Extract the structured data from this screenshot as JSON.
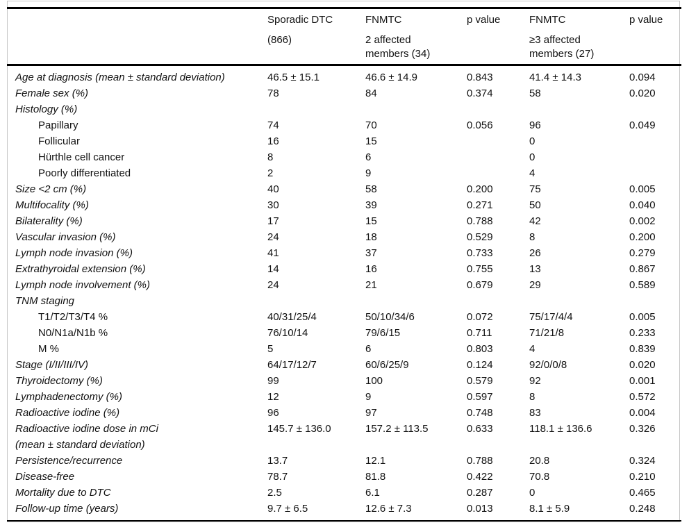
{
  "table": {
    "header": [
      {
        "line1": "",
        "line2": ""
      },
      {
        "line1": "Sporadic DTC",
        "line2": "(866)"
      },
      {
        "line1": "FNMTC",
        "line2": "2 affected members (34)"
      },
      {
        "line1": "p value",
        "line2": ""
      },
      {
        "line1": "FNMTC",
        "line2": "≥3 affected members (27)"
      },
      {
        "line1": "p value",
        "line2": ""
      }
    ],
    "rows": [
      {
        "label": "Age at diagnosis (mean ± standard deviation)",
        "italic": true,
        "sub": false,
        "cells": [
          "46.5 ± 15.1",
          "46.6 ± 14.9",
          "0.843",
          "41.4 ± 14.3",
          "0.094"
        ]
      },
      {
        "label": "Female sex (%)",
        "italic": true,
        "sub": false,
        "cells": [
          "78",
          "84",
          "0.374",
          "58",
          "0.020"
        ]
      },
      {
        "label": "Histology (%)",
        "italic": true,
        "sub": false,
        "cells": [
          "",
          "",
          "",
          "",
          ""
        ]
      },
      {
        "label": "Papillary",
        "italic": false,
        "sub": true,
        "cells": [
          "74",
          "70",
          "0.056",
          "96",
          "0.049"
        ]
      },
      {
        "label": "Follicular",
        "italic": false,
        "sub": true,
        "cells": [
          "16",
          "15",
          "",
          "0",
          ""
        ]
      },
      {
        "label": "Hürthle cell cancer",
        "italic": false,
        "sub": true,
        "cells": [
          "8",
          "6",
          "",
          "0",
          ""
        ]
      },
      {
        "label": "Poorly differentiated",
        "italic": false,
        "sub": true,
        "cells": [
          "2",
          "9",
          "",
          "4",
          ""
        ]
      },
      {
        "label": "Size <2 cm (%)",
        "italic": true,
        "sub": false,
        "cells": [
          "40",
          "58",
          "0.200",
          "75",
          "0.005"
        ]
      },
      {
        "label": "Multifocality (%)",
        "italic": true,
        "sub": false,
        "cells": [
          "30",
          "39",
          "0.271",
          "50",
          "0.040"
        ]
      },
      {
        "label": "Bilaterality (%)",
        "italic": true,
        "sub": false,
        "cells": [
          "17",
          "15",
          "0.788",
          "42",
          "0.002"
        ]
      },
      {
        "label": "Vascular invasion (%)",
        "italic": true,
        "sub": false,
        "cells": [
          "24",
          "18",
          "0.529",
          "8",
          "0.200"
        ]
      },
      {
        "label": "Lymph node invasion (%)",
        "italic": true,
        "sub": false,
        "cells": [
          "41",
          "37",
          "0.733",
          "26",
          "0.279"
        ]
      },
      {
        "label": "Extrathyroidal extension (%)",
        "italic": true,
        "sub": false,
        "cells": [
          "14",
          "16",
          "0.755",
          "13",
          "0.867"
        ]
      },
      {
        "label": "Lymph node involvement (%)",
        "italic": true,
        "sub": false,
        "cells": [
          "24",
          "21",
          "0.679",
          "29",
          "0.589"
        ]
      },
      {
        "label": "TNM staging",
        "italic": true,
        "sub": false,
        "cells": [
          "",
          "",
          "",
          "",
          ""
        ]
      },
      {
        "label": "T1/T2/T3/T4 %",
        "italic": false,
        "sub": true,
        "cells": [
          "40/31/25/4",
          "50/10/34/6",
          "0.072",
          "75/17/4/4",
          "0.005"
        ]
      },
      {
        "label": "N0/N1a/N1b %",
        "italic": false,
        "sub": true,
        "cells": [
          "76/10/14",
          "79/6/15",
          "0.711",
          "71/21/8",
          "0.233"
        ]
      },
      {
        "label": "M %",
        "italic": false,
        "sub": true,
        "cells": [
          "5",
          "6",
          "0.803",
          "4",
          "0.839"
        ]
      },
      {
        "label": "Stage (I/II/III/IV)",
        "italic": true,
        "sub": false,
        "cells": [
          "64/17/12/7",
          "60/6/25/9",
          "0.124",
          "92/0/0/8",
          "0.020"
        ]
      },
      {
        "label": "Thyroidectomy (%)",
        "italic": true,
        "sub": false,
        "cells": [
          "99",
          "100",
          "0.579",
          "92",
          "0.001"
        ]
      },
      {
        "label": "Lymphadenectomy (%)",
        "italic": true,
        "sub": false,
        "cells": [
          "12",
          "9",
          "0.597",
          "8",
          "0.572"
        ]
      },
      {
        "label": "Radioactive iodine (%)",
        "italic": true,
        "sub": false,
        "cells": [
          "96",
          "97",
          "0.748",
          "83",
          "0.004"
        ]
      },
      {
        "label": "Radioactive iodine dose in mCi",
        "label2": "(mean ± standard deviation)",
        "italic": true,
        "sub": false,
        "cells": [
          "145.7 ± 136.0",
          "157.2 ± 113.5",
          "0.633",
          "118.1 ± 136.6",
          "0.326"
        ]
      },
      {
        "label": "Persistence/recurrence",
        "italic": true,
        "sub": false,
        "cells": [
          "13.7",
          "12.1",
          "0.788",
          "20.8",
          "0.324"
        ]
      },
      {
        "label": "Disease-free",
        "italic": true,
        "sub": false,
        "cells": [
          "78.7",
          "81.8",
          "0.422",
          "70.8",
          "0.210"
        ]
      },
      {
        "label": "Mortality due to DTC",
        "italic": true,
        "sub": false,
        "cells": [
          "2.5",
          "6.1",
          "0.287",
          "0",
          "0.465"
        ]
      },
      {
        "label": "Follow-up time (years)",
        "italic": true,
        "sub": false,
        "cells": [
          "9.7 ± 6.5",
          "12.6 ± 7.3",
          "0.013",
          "8.1 ± 5.9",
          "0.248"
        ]
      }
    ],
    "colors": {
      "rule": "#000000",
      "outer_border": "#c6c6c6",
      "text": "#111111"
    }
  }
}
